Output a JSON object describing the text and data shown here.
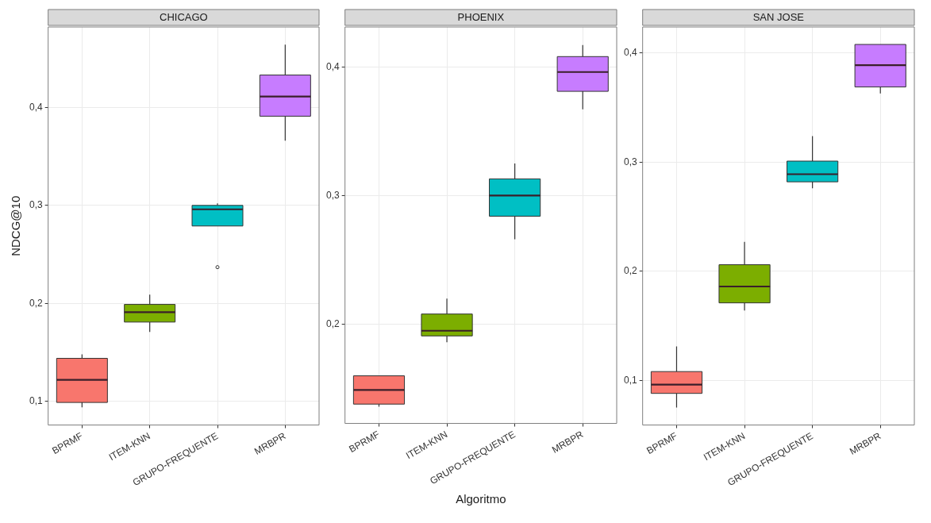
{
  "chart_data": [
    {
      "type": "box",
      "title": "CHICAGO",
      "ylabel": "NDCG@10",
      "categories": [
        "BPRMF",
        "ITEM-KNN",
        "GRUPO-FREQUENTE",
        "MRBPR"
      ],
      "colors": [
        "#f8766d",
        "#7cae00",
        "#00bfc4",
        "#c77cff"
      ],
      "boxes": [
        {
          "low": 0.094,
          "q1": 0.099,
          "median": 0.122,
          "q3": 0.144,
          "high": 0.148
        },
        {
          "low": 0.171,
          "q1": 0.181,
          "median": 0.191,
          "q3": 0.199,
          "high": 0.209
        },
        {
          "low": 0.279,
          "q1": 0.279,
          "median": 0.296,
          "q3": 0.3,
          "high": 0.302,
          "outliers": [
            0.237
          ]
        },
        {
          "low": 0.366,
          "q1": 0.391,
          "median": 0.411,
          "q3": 0.433,
          "high": 0.464
        }
      ],
      "ylim": [
        0.076,
        0.482
      ],
      "yticks": [
        {
          "value": 0.1,
          "label": "0,1"
        },
        {
          "value": 0.2,
          "label": "0,2"
        },
        {
          "value": 0.3,
          "label": "0,3"
        },
        {
          "value": 0.4,
          "label": "0,4"
        }
      ],
      "grid": true
    },
    {
      "type": "box",
      "title": "PHOENIX",
      "xlabel": "Algoritmo",
      "categories": [
        "BPRMF",
        "ITEM-KNN",
        "GRUPO-FREQUENTE",
        "MRBPR"
      ],
      "colors": [
        "#f8766d",
        "#7cae00",
        "#00bfc4",
        "#c77cff"
      ],
      "boxes": [
        {
          "low": 0.136,
          "q1": 0.138,
          "median": 0.149,
          "q3": 0.16,
          "high": 0.16
        },
        {
          "low": 0.186,
          "q1": 0.191,
          "median": 0.195,
          "q3": 0.208,
          "high": 0.22
        },
        {
          "low": 0.266,
          "q1": 0.284,
          "median": 0.3,
          "q3": 0.313,
          "high": 0.325
        },
        {
          "low": 0.367,
          "q1": 0.381,
          "median": 0.396,
          "q3": 0.408,
          "high": 0.417
        }
      ],
      "ylim": [
        0.123,
        0.431
      ],
      "yticks": [
        {
          "value": 0.2,
          "label": "0,2"
        },
        {
          "value": 0.3,
          "label": "0,3"
        },
        {
          "value": 0.4,
          "label": "0,4"
        }
      ],
      "grid": true
    },
    {
      "type": "box",
      "title": "SAN JOSE",
      "categories": [
        "BPRMF",
        "ITEM-KNN",
        "GRUPO-FREQUENTE",
        "MRBPR"
      ],
      "colors": [
        "#f8766d",
        "#7cae00",
        "#00bfc4",
        "#c77cff"
      ],
      "boxes": [
        {
          "low": 0.075,
          "q1": 0.088,
          "median": 0.096,
          "q3": 0.108,
          "high": 0.131
        },
        {
          "low": 0.164,
          "q1": 0.171,
          "median": 0.186,
          "q3": 0.206,
          "high": 0.227
        },
        {
          "low": 0.276,
          "q1": 0.282,
          "median": 0.289,
          "q3": 0.301,
          "high": 0.324
        },
        {
          "low": 0.363,
          "q1": 0.369,
          "median": 0.389,
          "q3": 0.408,
          "high": 0.408
        }
      ],
      "ylim": [
        0.059,
        0.424
      ],
      "yticks": [
        {
          "value": 0.1,
          "label": "0,1"
        },
        {
          "value": 0.2,
          "label": "0,2"
        },
        {
          "value": 0.3,
          "label": "0,3"
        },
        {
          "value": 0.4,
          "label": "0,4"
        }
      ],
      "grid": true
    }
  ]
}
